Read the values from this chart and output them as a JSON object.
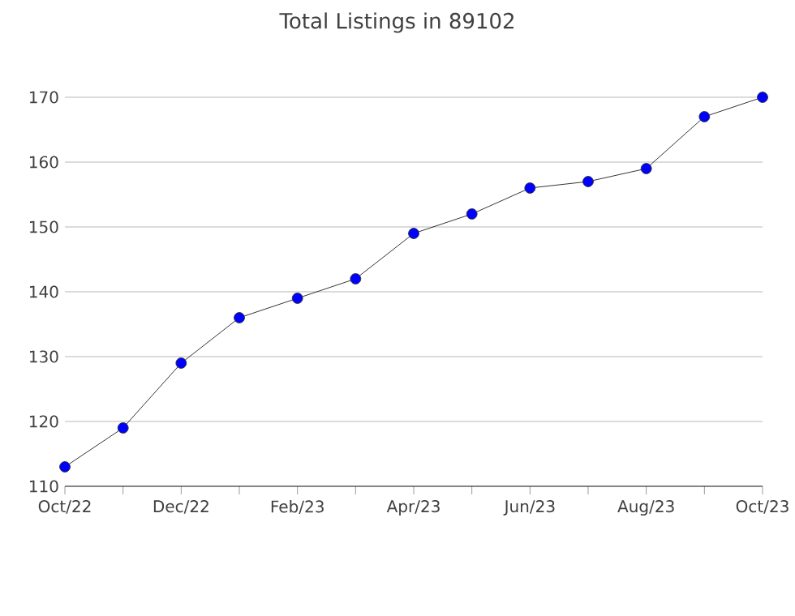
{
  "chart_data": {
    "type": "line",
    "title": "Total Listings in 89102",
    "categories": [
      "Oct/22",
      null,
      "Dec/22",
      null,
      "Feb/23",
      null,
      "Apr/23",
      null,
      "Jun/23",
      null,
      "Aug/23",
      null,
      "Oct/23"
    ],
    "values": [
      113,
      119,
      129,
      136,
      139,
      142,
      149,
      152,
      156,
      157,
      159,
      167,
      170
    ],
    "color": "#0000ff",
    "marker": "circle",
    "grid": "y",
    "ylim": [
      110,
      170
    ],
    "yticks": [
      110,
      120,
      130,
      140,
      150,
      160,
      170
    ]
  }
}
